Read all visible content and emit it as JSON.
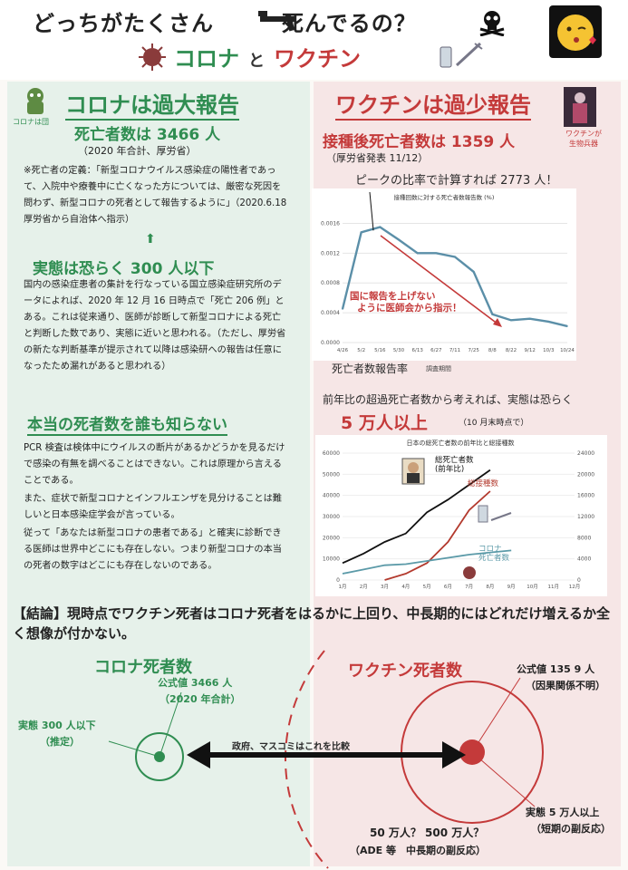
{
  "header": {
    "title": "どっちがたくさん　　　死んでるの？",
    "subtitle_corona": "コロナ",
    "subtitle_to": "と",
    "subtitle_vaccine": "ワクチン"
  },
  "left": {
    "icon_label": "コロナは団",
    "heading": "コロナは過大報告",
    "deaths_line": "死亡者数は 3466 人",
    "deaths_note": "（2020 年合計、厚労省）",
    "definition": "※死亡者の定義：「新型コロナウイルス感染症の陽性者であって、入院中や療養中に亡くなった方については、厳密な死因を問わず、新型コロナの死者として報告するように」（2020.6.18 厚労省から自治体へ指示）",
    "arrow_up": "⬆",
    "reality_heading": "実態は恐らく 300 人以下",
    "reality_text": "国内の感染症患者の集計を行なっている国立感染症研究所のデータによれば、2020 年 12 月 16 日時点で「死亡 206 例」とある。これは従来通り、医師が診断して新型コロナによる死亡と判断した数であり、実態に近いと思われる。（ただし、厚労省の新たな判断基準が提示されて以降は感染研への報告は任意になったため漏れがあると思われる）",
    "unknown_heading": "本当の死者数を誰も知らない",
    "unknown_p1": "PCR 検査は検体中にウイルスの断片があるかどうかを見るだけで感染の有無を調べることはできない。これは原理から言えることである。",
    "unknown_p2": "また、症状で新型コロナとインフルエンザを見分けることは難しいと日本感染症学会が言っている。",
    "unknown_p3": "従って「あなたは新型コロナの患者である」と確実に診断できる医師は世界中どこにも存在しない。つまり新型コロナの本当の死者の数字はどこにも存在しないのである。"
  },
  "right": {
    "heading": "ワクチンは過少報告",
    "icon_label": "ワクチンが\n生物兵器",
    "deaths_line": "接種後死亡者数は 1359 人",
    "deaths_note": "（厚労省発表 11/12）",
    "peak_text": "ピークの比率で計算すれば 2773 人！",
    "excess_text": "前年比の超過死亡者数から考えれば、実態は恐らく",
    "excess_big": "5 万人以上",
    "excess_note": "（10 月末時点で）"
  },
  "chart1": {
    "type": "line",
    "title": "接種回数に対する死亡者数報告数 (%)",
    "caption": "死亡者数報告率",
    "caption_small": "調査期間",
    "annotation": "国に報告を上げない\nように医師会から指示！",
    "x": [
      "4/26",
      "5/2",
      "5/16",
      "5/30",
      "6/13",
      "6/27",
      "7/11",
      "7/25",
      "8/8",
      "8/22",
      "9/12",
      "10/3",
      "10/24"
    ],
    "y_ticks": [
      "0.0016",
      "0.0012",
      "0.0008",
      "0.0004",
      "0.0000"
    ],
    "ylim": [
      0,
      0.0018
    ],
    "values": [
      0.00045,
      0.00148,
      0.00155,
      0.00138,
      0.0012,
      0.0012,
      0.00115,
      0.00095,
      0.00038,
      0.0003,
      0.00032,
      0.00028,
      0.00022
    ],
    "color": "#5b8fa8"
  },
  "chart2": {
    "type": "line",
    "title": "日本の総死亡者数の前年比と総接種数",
    "x": [
      "1月",
      "2月",
      "3月",
      "4月",
      "5月",
      "6月",
      "7月",
      "8月",
      "9月",
      "10月",
      "11月",
      "12月"
    ],
    "y_left_ticks": [
      "60000",
      "50000",
      "40000",
      "30000",
      "20000",
      "10000",
      "0"
    ],
    "y_right_ticks": [
      "24000",
      "20000",
      "16000",
      "12000",
      "8000",
      "4000",
      "0"
    ],
    "ylim": [
      0,
      60000
    ],
    "series": [
      {
        "name": "総死亡者数\n(前年比)",
        "color": "#111111",
        "values": [
          8000,
          12500,
          18000,
          22000,
          32000,
          38000,
          45000,
          52000
        ]
      },
      {
        "name": "総接種数",
        "color": "#b33a2e",
        "values": [
          null,
          null,
          0,
          3000,
          8000,
          18000,
          33000,
          42000
        ]
      },
      {
        "name": "コロナ\n死亡者数",
        "color": "#5b9aa8",
        "values": [
          3000,
          5000,
          7000,
          7500,
          9000,
          10500,
          12000,
          13000,
          14000
        ]
      }
    ]
  },
  "conclusion": "【結論】現時点でワクチン死者はコロナ死者をはるかに上回り、中長期的にはどれだけ増えるか全く想像が付かない。",
  "bottom": {
    "corona_title": "コロナ死者数",
    "vaccine_title": "ワクチン死者数",
    "corona_official": "公式値 3466 人",
    "corona_official_note": "（2020 年合計）",
    "corona_real": "実態 300 人以下",
    "corona_real_note": "（推定）",
    "compare_label": "政府、マスコミはこれを比較",
    "vac_official": "公式値 135 9 人",
    "vac_official_note": "（因果関係不明）",
    "vac_real": "実態 5 万人以上",
    "vac_real_note": "（短期の副反応）",
    "vac_long": "50 万人？ 500 万人？",
    "vac_long_note": "（ADE 等　中長期の副反応）"
  }
}
